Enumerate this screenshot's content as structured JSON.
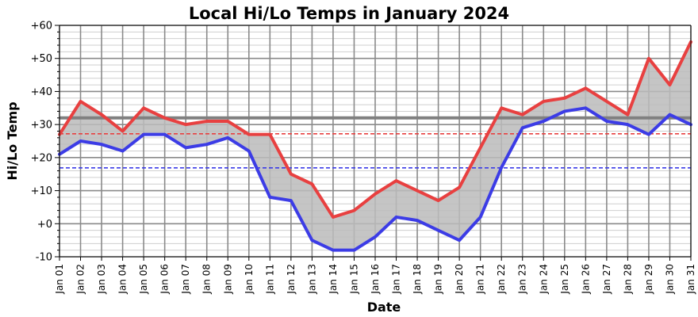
{
  "chart_data": {
    "type": "line",
    "title": "Local Hi/Lo Temps in January 2024",
    "xlabel": "Date",
    "ylabel": "Hi/Lo Temp",
    "ylim": [
      -10,
      60
    ],
    "y_ticks": [
      -10,
      0,
      10,
      20,
      30,
      40,
      50,
      60
    ],
    "y_tick_labels": [
      "-10",
      "+0",
      "+10",
      "+20",
      "+30",
      "+40",
      "+50",
      "+60"
    ],
    "grid": true,
    "categories": [
      "Jan 01",
      "Jan 02",
      "Jan 03",
      "Jan 04",
      "Jan 05",
      "Jan 06",
      "Jan 07",
      "Jan 08",
      "Jan 09",
      "Jan 10",
      "Jan 11",
      "Jan 12",
      "Jan 13",
      "Jan 14",
      "Jan 15",
      "Jan 16",
      "Jan 17",
      "Jan 18",
      "Jan 19",
      "Jan 20",
      "Jan 21",
      "Jan 22",
      "Jan 23",
      "Jan 24",
      "Jan 25",
      "Jan 26",
      "Jan 27",
      "Jan 28",
      "Jan 29",
      "Jan 30",
      "Jan 31"
    ],
    "series": [
      {
        "color": "#e84040",
        "values": [
          27,
          37,
          33,
          28,
          35,
          32,
          30,
          31,
          31,
          27,
          27,
          15,
          12,
          2,
          4,
          9,
          13,
          10,
          7,
          11,
          23,
          35,
          33,
          37,
          38,
          41,
          37,
          33,
          50,
          42,
          55
        ]
      },
      {
        "color": "#3c3ce6",
        "values": [
          21,
          25,
          24,
          22,
          27,
          27,
          23,
          24,
          26,
          22,
          8,
          7,
          -5,
          -8,
          -8,
          -4,
          2,
          1,
          -2,
          -5,
          2,
          17,
          29,
          31,
          34,
          35,
          31,
          30,
          27,
          33,
          30
        ]
      }
    ],
    "reference_lines": [
      {
        "value": 32,
        "color": "#808080",
        "style": "solid"
      },
      {
        "value": 27.2,
        "color": "#e84040",
        "style": "dashed"
      },
      {
        "value": 16.9,
        "color": "#3c3ce6",
        "style": "dashed"
      }
    ],
    "fill_between_color": "#bbbbbb"
  }
}
